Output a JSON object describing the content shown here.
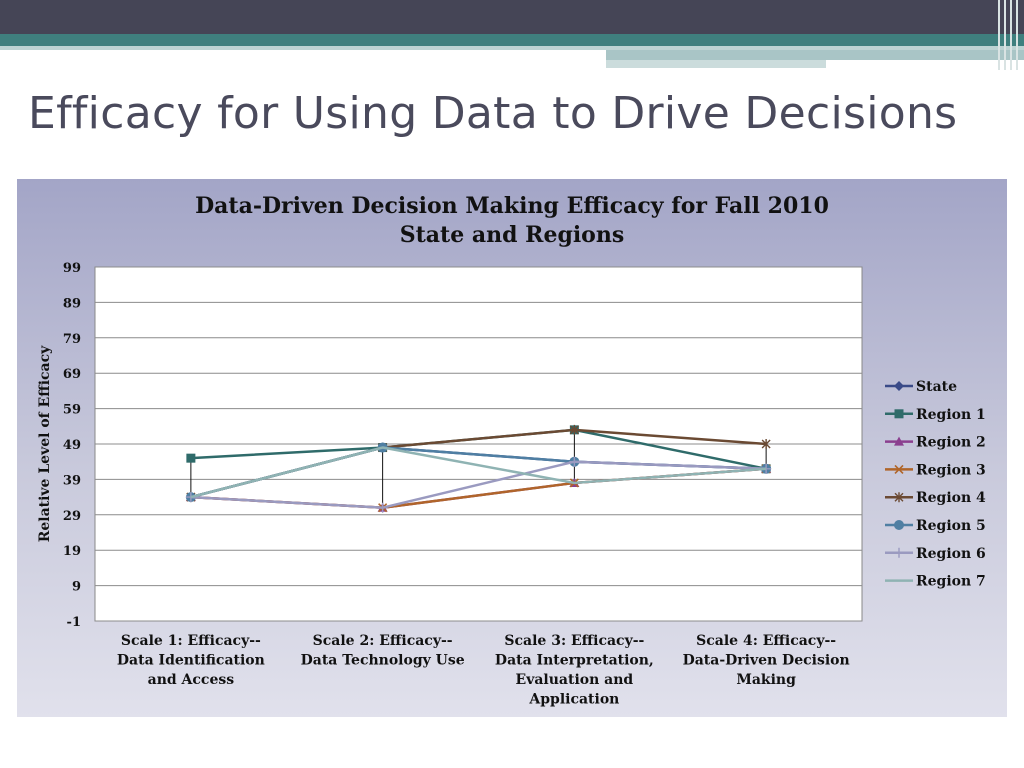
{
  "slide": {
    "title": "Efficacy for Using Data to Drive Decisions"
  },
  "colors": {
    "header_dark": "#454556",
    "header_teal": "#3f7f7e",
    "panel_top": "#a3a5c7",
    "panel_bottom": "#e1e1ec"
  },
  "chart_data": {
    "type": "line",
    "title_lines": [
      "Data-Driven Decision Making Efficacy for Fall 2010",
      "State and Regions"
    ],
    "ylabel": "Relative Level of Efficacy",
    "xlabel": "",
    "ylim": [
      -1,
      99
    ],
    "yticks": [
      99,
      89,
      79,
      69,
      59,
      49,
      39,
      29,
      19,
      9,
      -1
    ],
    "grid": true,
    "legend_position": "right",
    "categories": [
      [
        "Scale 1: Efficacy--",
        "Data Identification",
        "and Access"
      ],
      [
        "Scale 2: Efficacy--",
        "Data Technology Use"
      ],
      [
        "Scale 3: Efficacy--",
        "Data Interpretation,",
        "Evaluation and",
        "Application"
      ],
      [
        "Scale 4: Efficacy--",
        "Data-Driven Decision",
        "Making"
      ]
    ],
    "series": [
      {
        "name": "State",
        "values": [
          34,
          48,
          44,
          42
        ],
        "color": "#3a4a88",
        "marker": "diamond"
      },
      {
        "name": "Region 1",
        "values": [
          45,
          48,
          53,
          42
        ],
        "color": "#2f6b6a",
        "marker": "square"
      },
      {
        "name": "Region 2",
        "values": [
          34,
          31,
          38,
          42
        ],
        "color": "#8b3f8f",
        "marker": "triangle"
      },
      {
        "name": "Region 3",
        "values": [
          34,
          31,
          38,
          42
        ],
        "color": "#b0652a",
        "marker": "x"
      },
      {
        "name": "Region 4",
        "values": [
          34,
          48,
          53,
          49
        ],
        "color": "#6b4a33",
        "marker": "star"
      },
      {
        "name": "Region 5",
        "values": [
          34,
          48,
          44,
          42
        ],
        "color": "#4f7fa3",
        "marker": "circle"
      },
      {
        "name": "Region 6",
        "values": [
          34,
          31,
          44,
          42
        ],
        "color": "#9a9ac0",
        "marker": "plus"
      },
      {
        "name": "Region 7",
        "values": [
          34,
          48,
          38,
          42
        ],
        "color": "#8fb3b3",
        "marker": "none"
      }
    ],
    "drop_lines": true
  }
}
